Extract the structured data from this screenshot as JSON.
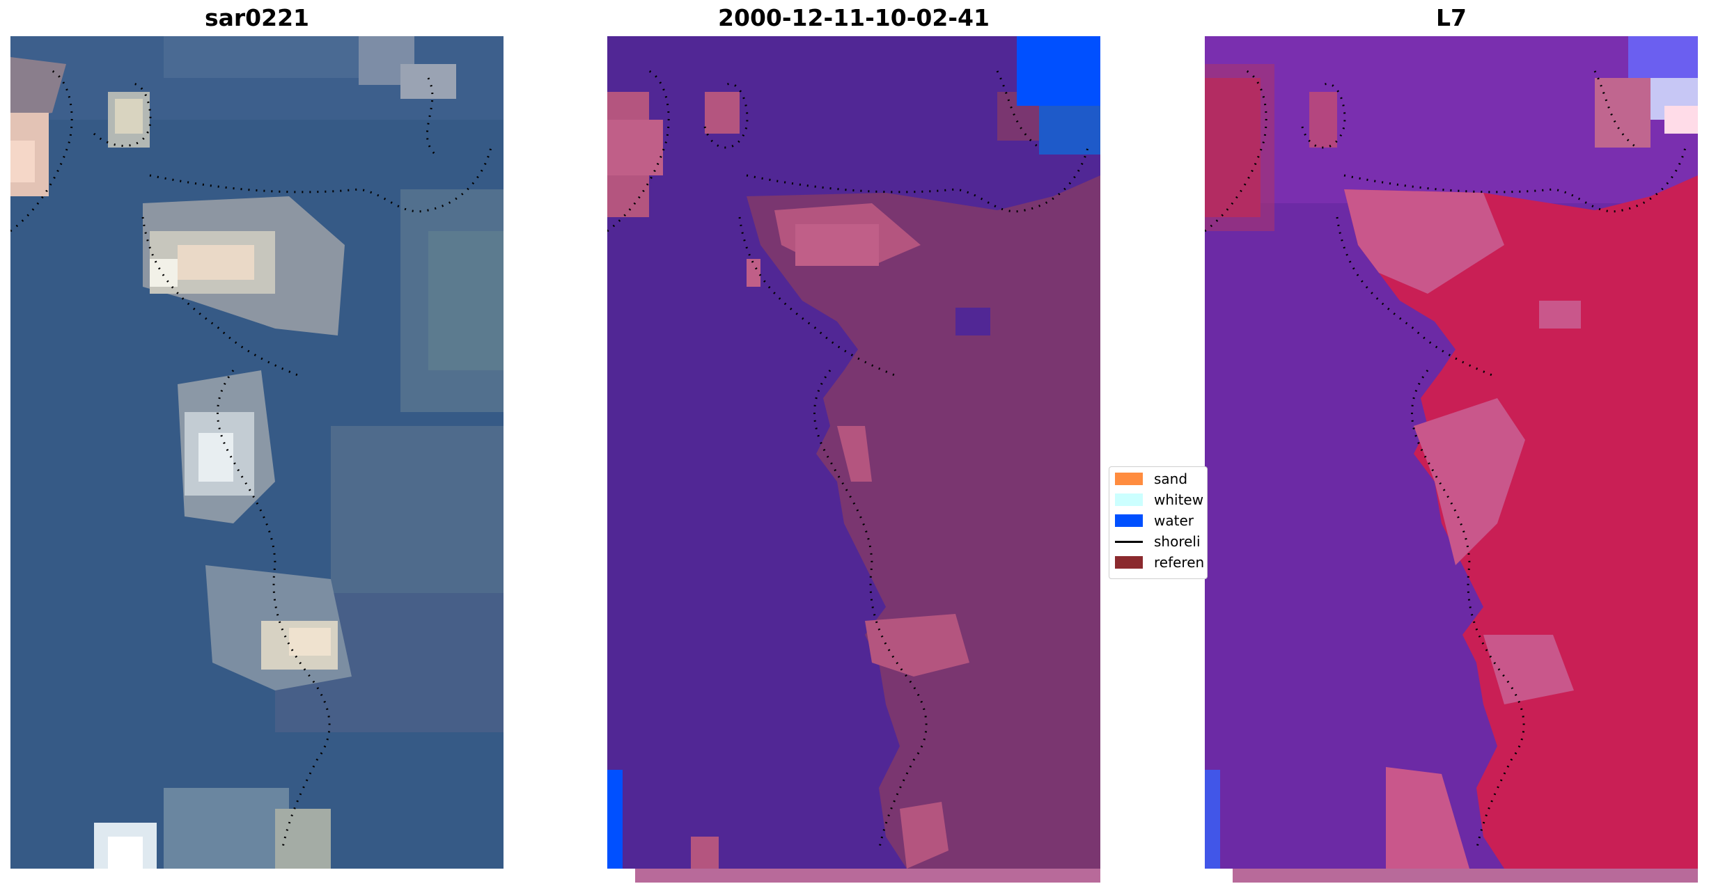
{
  "panels": [
    {
      "title": "sar0221",
      "image": "rgb satellite image of coastline"
    },
    {
      "title": "2000-12-11-10-02-41",
      "image": "classified image overlay"
    },
    {
      "title": "L7",
      "image": "index image"
    }
  ],
  "legend": {
    "items": [
      {
        "label": "sand",
        "color": "#ff8c3f"
      },
      {
        "label": "whitew",
        "color": "#ccffff"
      },
      {
        "label": "water",
        "color": "#0050ff"
      },
      {
        "label": "shoreli",
        "color": "#000000",
        "kind": "line"
      },
      {
        "label": "referen",
        "color": "#8b2a2e"
      }
    ]
  },
  "colors": {
    "rgb_water": "#365a86",
    "rgb_land": "#6c8aa6",
    "rgb_sand": "#efe2cf",
    "class_bg": "#512795",
    "class_land": "#7a3670",
    "class_land_light": "#b4557f",
    "class_water": "#0050ff",
    "index_bg": "#6c2aa5",
    "index_land": "#c91f55",
    "index_mid": "#c9578b"
  }
}
